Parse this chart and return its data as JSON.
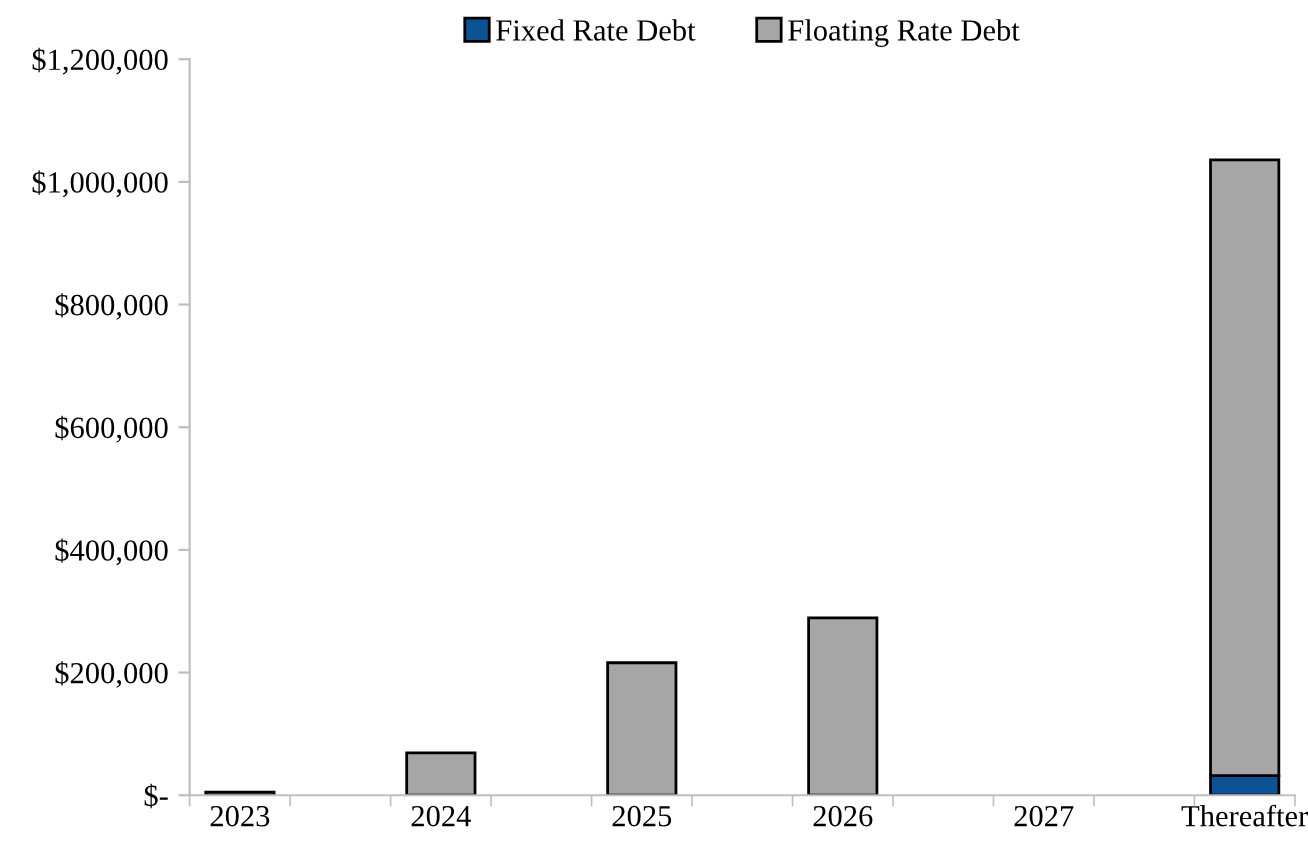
{
  "chart_data": {
    "type": "bar",
    "stacked": true,
    "categories": [
      "2023",
      "2024",
      "2025",
      "2026",
      "2027",
      "Thereafter"
    ],
    "series": [
      {
        "name": "Fixed Rate Debt",
        "color": "#0b5394",
        "values": [
          null,
          null,
          null,
          null,
          null,
          32000
        ]
      },
      {
        "name": "Floating Rate Debt",
        "color": "#a6a6a6",
        "values": [
          5000,
          69000,
          216000,
          289000,
          null,
          1004000
        ]
      }
    ],
    "ylim": [
      0,
      1200000
    ],
    "yticks": [
      {
        "value": 0,
        "label": "$-"
      },
      {
        "value": 200000,
        "label": "$200,000"
      },
      {
        "value": 400000,
        "label": "$400,000"
      },
      {
        "value": 600000,
        "label": "$600,000"
      },
      {
        "value": 800000,
        "label": "$800,000"
      },
      {
        "value": 1000000,
        "label": "$1,000,000"
      },
      {
        "value": 1200000,
        "label": "$1,200,000"
      }
    ],
    "grid": false,
    "legend": "top"
  }
}
